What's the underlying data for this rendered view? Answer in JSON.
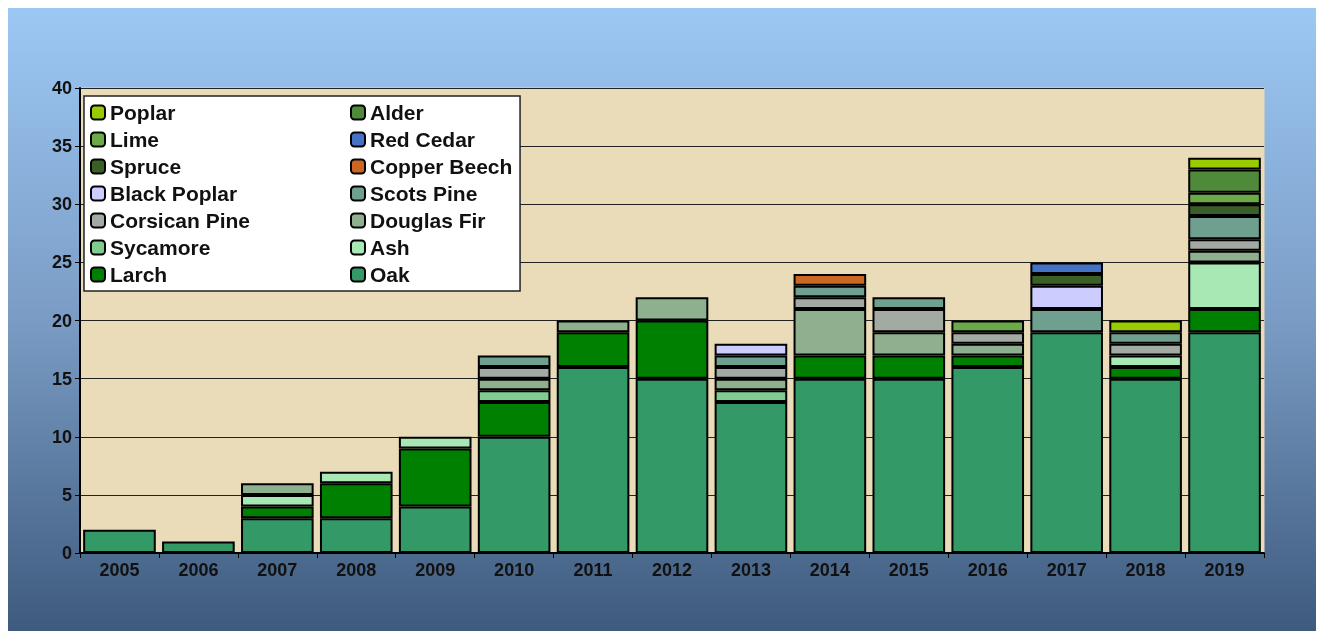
{
  "chart_data": {
    "type": "bar",
    "stacked": true,
    "categories": [
      "2005",
      "2006",
      "2007",
      "2008",
      "2009",
      "2010",
      "2011",
      "2012",
      "2013",
      "2014",
      "2015",
      "2016",
      "2017",
      "2018",
      "2019"
    ],
    "ylim": [
      0,
      40
    ],
    "yticks": [
      0,
      5,
      10,
      15,
      20,
      25,
      30,
      35,
      40
    ],
    "grid": "y",
    "legend": "top left",
    "series": [
      {
        "name": "Oak",
        "color": "#339966",
        "values": [
          2,
          1,
          3,
          3,
          4,
          10,
          16,
          15,
          13,
          15,
          15,
          16,
          19,
          15,
          19
        ]
      },
      {
        "name": "Larch",
        "color": "#008000",
        "values": [
          null,
          null,
          1,
          3,
          5,
          3,
          3,
          5,
          null,
          2,
          2,
          1,
          null,
          1,
          2
        ]
      },
      {
        "name": "Ash",
        "color": "#a8e8b4",
        "values": [
          null,
          null,
          1,
          1,
          1,
          null,
          null,
          null,
          null,
          null,
          null,
          null,
          null,
          1,
          4
        ]
      },
      {
        "name": "Sycamore",
        "color": "#80cc90",
        "values": [
          null,
          null,
          null,
          null,
          null,
          1,
          null,
          null,
          1,
          null,
          null,
          null,
          null,
          null,
          null
        ]
      },
      {
        "name": "Douglas Fir",
        "color": "#8fb08f",
        "values": [
          null,
          null,
          1,
          null,
          null,
          1,
          1,
          2,
          1,
          4,
          2,
          1,
          null,
          null,
          1
        ]
      },
      {
        "name": "Corsican Pine",
        "color": "#a3aaa3",
        "values": [
          null,
          null,
          null,
          null,
          null,
          1,
          null,
          null,
          1,
          1,
          2,
          1,
          null,
          1,
          1
        ]
      },
      {
        "name": "Scots Pine",
        "color": "#6f9f8f",
        "values": [
          null,
          null,
          null,
          null,
          null,
          1,
          null,
          null,
          1,
          1,
          1,
          null,
          2,
          1,
          2
        ]
      },
      {
        "name": "Black Poplar",
        "color": "#ccccff",
        "values": [
          null,
          null,
          null,
          null,
          null,
          null,
          null,
          null,
          1,
          null,
          null,
          null,
          2,
          null,
          null
        ]
      },
      {
        "name": "Copper Beech",
        "color": "#cc6622",
        "values": [
          null,
          null,
          null,
          null,
          null,
          null,
          null,
          null,
          null,
          1,
          null,
          null,
          null,
          null,
          null
        ]
      },
      {
        "name": "Spruce",
        "color": "#3a6028",
        "values": [
          null,
          null,
          null,
          null,
          null,
          null,
          null,
          null,
          null,
          null,
          null,
          null,
          1,
          null,
          1
        ]
      },
      {
        "name": "Red Cedar",
        "color": "#4472c4",
        "values": [
          null,
          null,
          null,
          null,
          null,
          null,
          null,
          null,
          null,
          null,
          null,
          null,
          1,
          null,
          null
        ]
      },
      {
        "name": "Lime",
        "color": "#6aaa48",
        "values": [
          null,
          null,
          null,
          null,
          null,
          null,
          null,
          null,
          null,
          null,
          null,
          1,
          null,
          null,
          1
        ]
      },
      {
        "name": "Alder",
        "color": "#4e8a3a",
        "values": [
          null,
          null,
          null,
          null,
          null,
          null,
          null,
          null,
          null,
          null,
          null,
          null,
          null,
          null,
          2
        ]
      },
      {
        "name": "Poplar",
        "color": "#99cc00",
        "values": [
          null,
          null,
          null,
          null,
          null,
          null,
          null,
          null,
          null,
          null,
          null,
          null,
          null,
          1,
          1
        ]
      }
    ]
  }
}
